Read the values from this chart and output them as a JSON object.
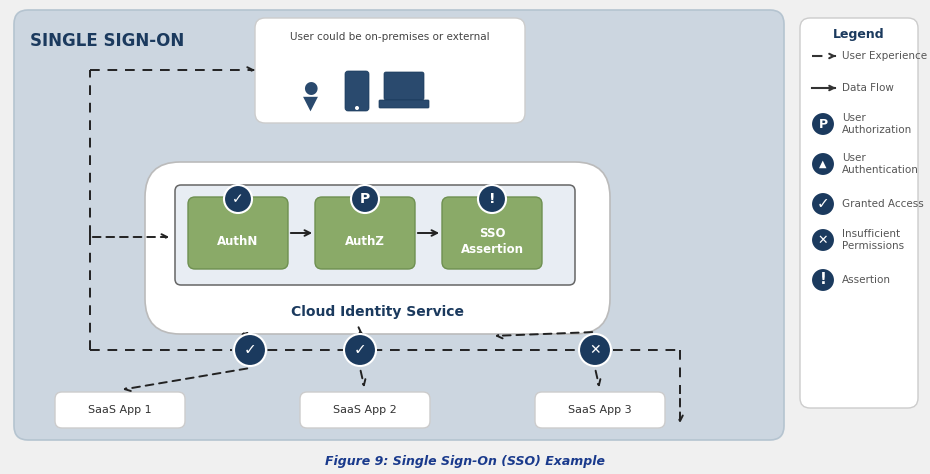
{
  "title": "SINGLE SIGN-ON",
  "caption": "Figure 9: Single Sign-On (SSO) Example",
  "bg_color": "#ccd6e0",
  "white": "#ffffff",
  "dark_blue": "#1b3a5e",
  "medium_blue": "#1b3a5e",
  "green_box": "#8aaa68",
  "green_edge": "#6e9050",
  "arrow_color": "#222222",
  "legend_text_color": "#555555",
  "saas_apps": [
    "SaaS App 1",
    "SaaS App 2",
    "SaaS App 3"
  ],
  "cloud_service_label": "Cloud Identity Service",
  "user_label": "User could be on-premises or external",
  "auth_labels": [
    "AuthN",
    "AuthZ",
    "SSO\nAssertion"
  ],
  "fig_width": 9.3,
  "fig_height": 4.74,
  "dpi": 100
}
